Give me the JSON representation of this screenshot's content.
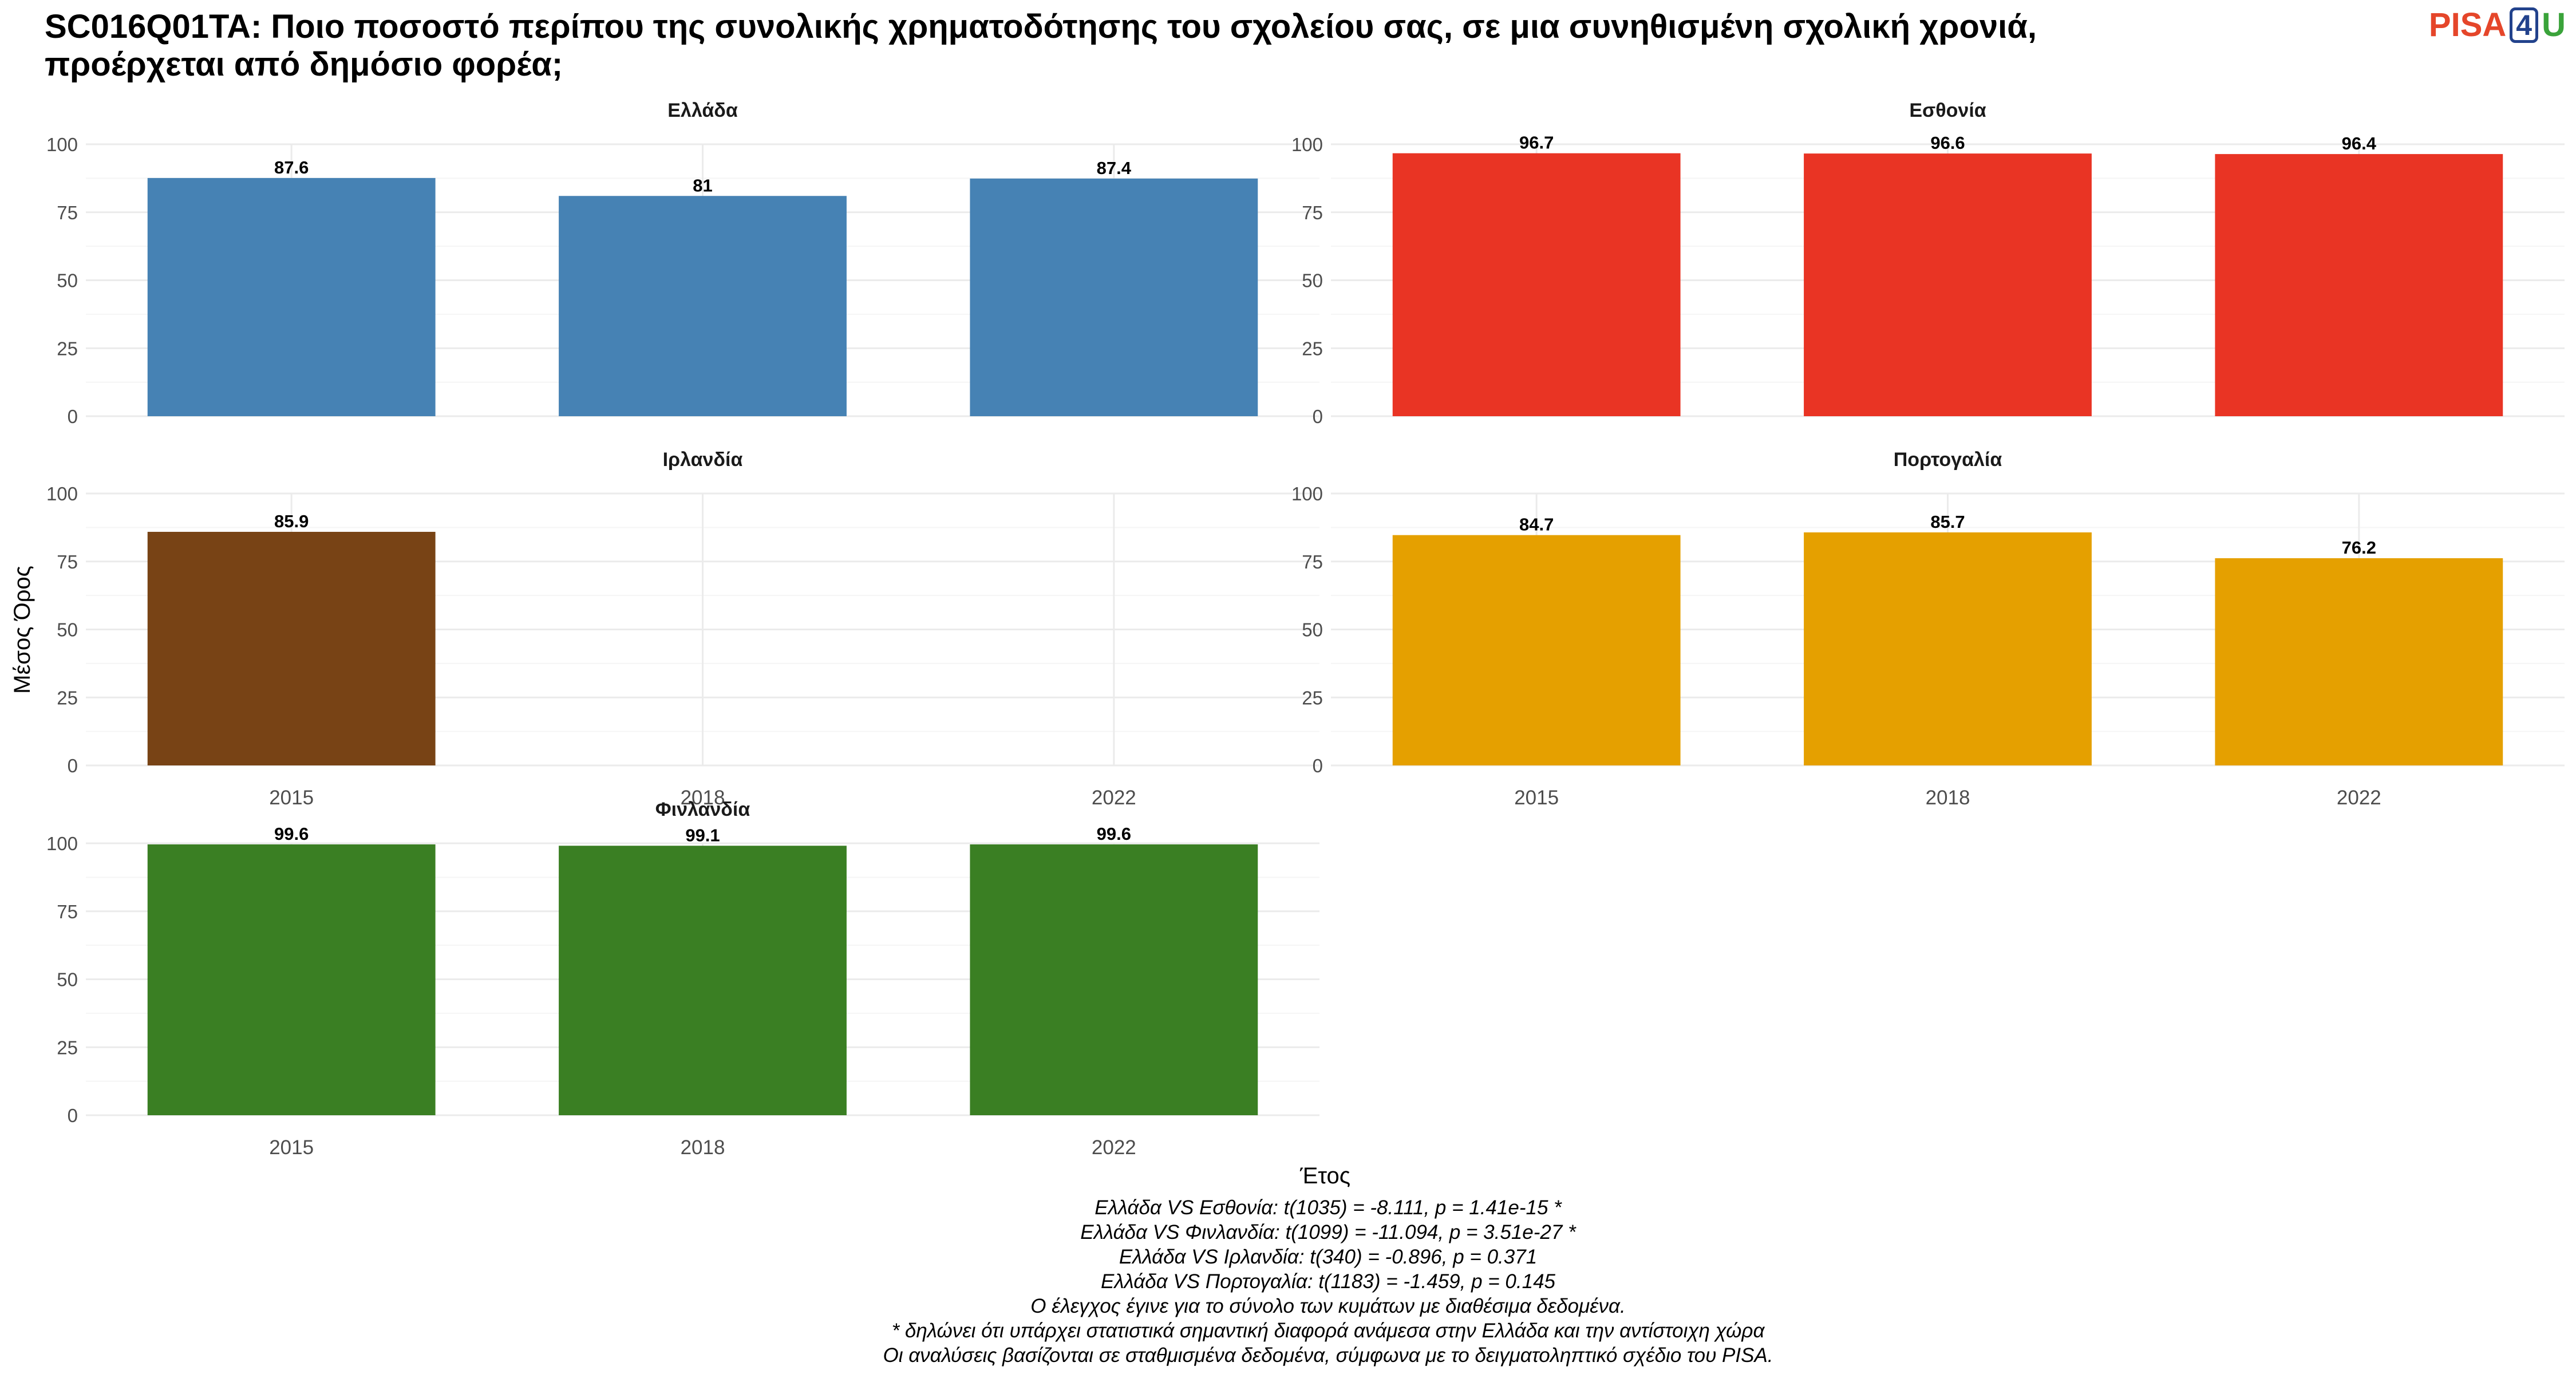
{
  "title": "SC016Q01TA: Ποιο ποσοστό περίπου της συνολικής χρηματοδότησης του σχολείου σας, σε μια συνηθισμένη σχολική χρονιά, προέρχεται από δημόσιο φορέα;",
  "logo": {
    "pisa": "PISA",
    "four": "4",
    "u": "U"
  },
  "chart_data": {
    "type": "bar",
    "ylabel": "Μέσος Όρος",
    "xlabel": "Έτος",
    "ylim": [
      0,
      100
    ],
    "yticks": [
      0,
      25,
      50,
      75,
      100
    ],
    "categories": [
      "2015",
      "2018",
      "2022"
    ],
    "grid": true,
    "panels": [
      {
        "name": "Ελλάδα",
        "color": "#4682b4",
        "values": [
          87.6,
          81,
          87.4
        ],
        "labels": [
          "87.6",
          "81",
          "87.4"
        ]
      },
      {
        "name": "Εσθονία",
        "color": "#e93424",
        "values": [
          96.7,
          96.6,
          96.4
        ],
        "labels": [
          "96.7",
          "96.6",
          "96.4"
        ]
      },
      {
        "name": "Ιρλανδία",
        "color": "#784315",
        "values": [
          85.9,
          null,
          null
        ],
        "labels": [
          "85.9",
          "",
          ""
        ]
      },
      {
        "name": "Πορτογαλία",
        "color": "#e5a000",
        "values": [
          84.7,
          85.7,
          76.2
        ],
        "labels": [
          "84.7",
          "85.7",
          "76.2"
        ]
      },
      {
        "name": "Φινλανδία",
        "color": "#3a7f23",
        "values": [
          99.6,
          99.1,
          99.6
        ],
        "labels": [
          "99.6",
          "99.1",
          "99.6"
        ]
      }
    ]
  },
  "footnotes": [
    "Ελλάδα VS Εσθονία: t(1035) = -8.111, p = 1.41e-15 *",
    "Ελλάδα VS Φινλανδία: t(1099) = -11.094, p = 3.51e-27 *",
    "Ελλάδα VS Ιρλανδία: t(340) = -0.896, p = 0.371",
    "Ελλάδα VS Πορτογαλία: t(1183) = -1.459, p = 0.145",
    "Ο έλεγχος έγινε για το σύνολο των κυμάτων με διαθέσιμα δεδομένα.",
    "* δηλώνει ότι υπάρχει στατιστικά σημαντική διαφορά ανάμεσα στην Ελλάδα και την αντίστοιχη χώρα",
    "Οι αναλύσεις βασίζονται σε σταθμισμένα δεδομένα, σύμφωνα με το δειγματοληπτικό σχέδιο του PISA."
  ]
}
